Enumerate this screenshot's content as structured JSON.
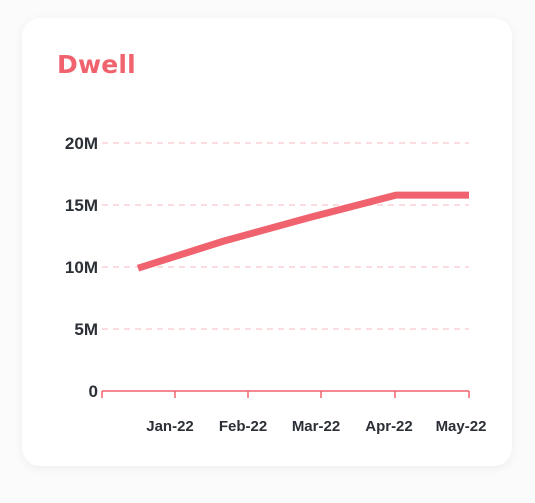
{
  "card": {
    "title": "Dwell"
  },
  "colors": {
    "accent": "#f0626e",
    "grid": "#f7b9bf",
    "text": "#2b2f36"
  },
  "chart_data": {
    "type": "line",
    "title": "Dwell",
    "xlabel": "",
    "ylabel": "",
    "categories": [
      "Jan-22",
      "Feb-22",
      "Mar-22",
      "Apr-22",
      "May-22"
    ],
    "yticks": [
      0,
      5000000,
      10000000,
      15000000,
      20000000
    ],
    "ytick_labels": [
      "0",
      "5M",
      "10M",
      "15M",
      "20M"
    ],
    "ylim": [
      0,
      20000000
    ],
    "grid": true,
    "legend": "none",
    "series": [
      {
        "x": [
          "Jan-22",
          "Feb-22",
          "Mar-22",
          "Apr-22",
          "May-22"
        ],
        "values": [
          9900000,
          12100000,
          14000000,
          15800000,
          15800000
        ]
      }
    ]
  }
}
